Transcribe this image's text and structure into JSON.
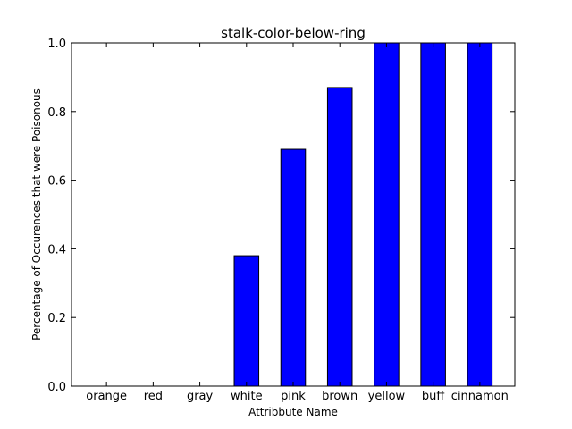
{
  "chart_data": {
    "type": "bar",
    "title": "stalk-color-below-ring",
    "xlabel": "Attribbute Name",
    "ylabel": "Percentage of Occurences that were Poisonous",
    "categories": [
      "orange",
      "red",
      "gray",
      "white",
      "pink",
      "brown",
      "yellow",
      "buff",
      "cinnamon"
    ],
    "values": [
      0.0,
      0.0,
      0.0,
      0.38,
      0.69,
      0.87,
      1.0,
      1.0,
      1.0
    ],
    "ylim": [
      0.0,
      1.0
    ],
    "yticks": [
      "0.0",
      "0.2",
      "0.4",
      "0.6",
      "0.8",
      "1.0"
    ],
    "grid": false,
    "legend": "none",
    "bar_color": "#0000ff",
    "edge_color": "#000000"
  }
}
